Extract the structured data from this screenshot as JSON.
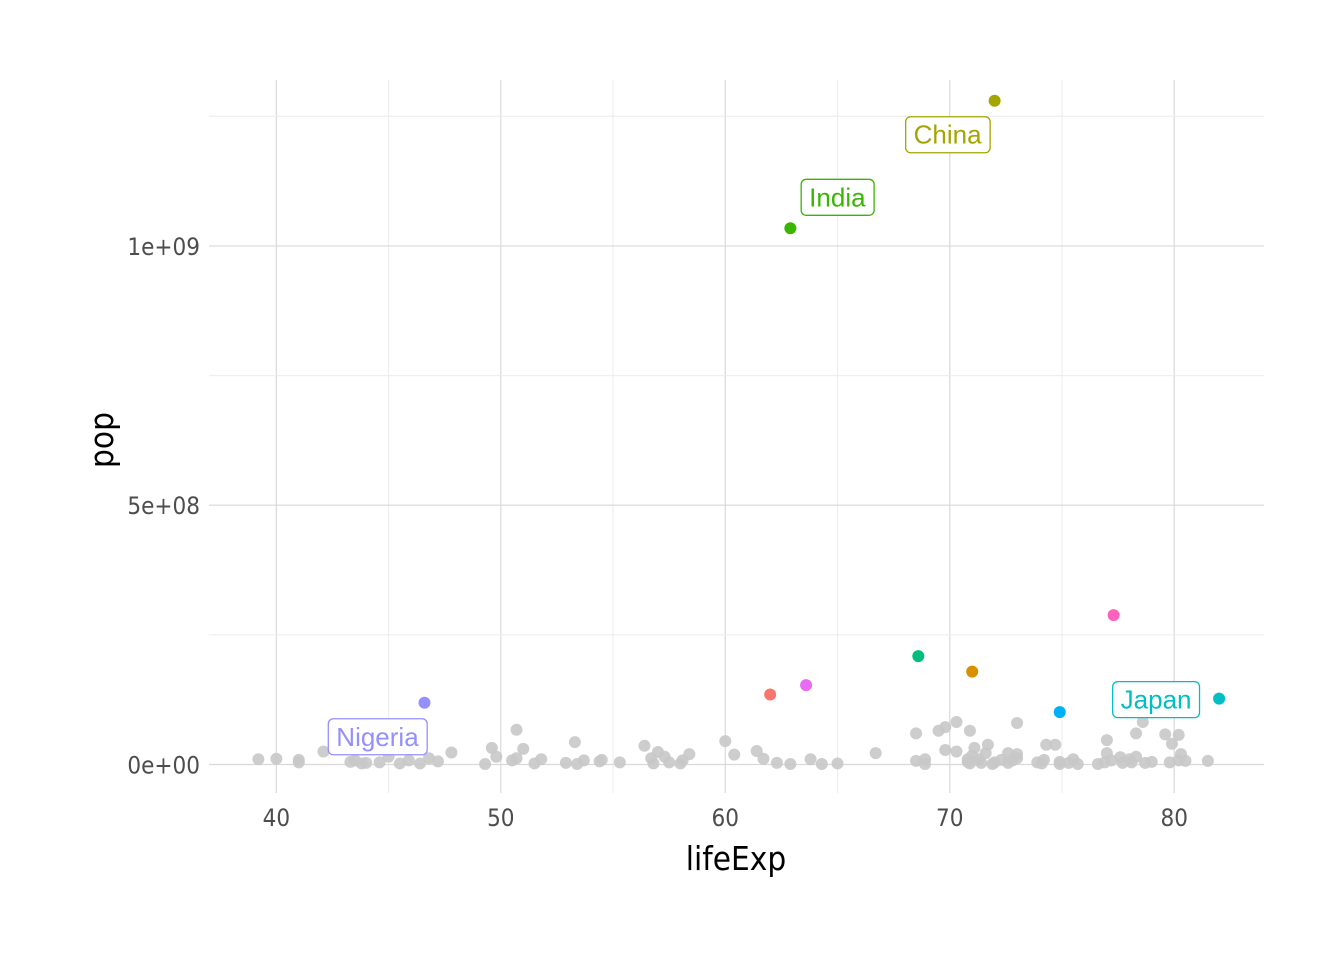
{
  "chart_data": {
    "type": "scatter",
    "xlabel": "lifeExp",
    "ylabel": "pop",
    "xlim": [
      37.0,
      84.0
    ],
    "ylim": [
      -55000000,
      1320000000
    ],
    "x_ticks": [
      40,
      50,
      60,
      70,
      80
    ],
    "x_tick_labels": [
      "40",
      "50",
      "60",
      "70",
      "80"
    ],
    "y_ticks": [
      0,
      500000000,
      1000000000
    ],
    "y_tick_labels": [
      "0e+00",
      "5e+08",
      "1e+09"
    ],
    "grid": true,
    "background_point_color": "#c8c8c8",
    "highlighted": [
      {
        "label": "China",
        "x": 72.0,
        "y": 1280000000,
        "color": "#a3a500",
        "show_label": true
      },
      {
        "label": "India",
        "x": 62.9,
        "y": 1034000000,
        "color": "#39b600",
        "show_label": true
      },
      {
        "label": "Nigeria",
        "x": 46.6,
        "y": 119000000,
        "color": "#9590ff",
        "show_label": true
      },
      {
        "label": "Japan",
        "x": 82.0,
        "y": 127000000,
        "color": "#00bfc4",
        "show_label": true
      },
      {
        "label": "",
        "x": 77.3,
        "y": 288000000,
        "color": "#ff62bc",
        "show_label": false
      },
      {
        "label": "",
        "x": 68.6,
        "y": 209000000,
        "color": "#00bf7d",
        "show_label": false
      },
      {
        "label": "",
        "x": 71.0,
        "y": 179000000,
        "color": "#d89000",
        "show_label": false
      },
      {
        "label": "",
        "x": 63.6,
        "y": 153000000,
        "color": "#e76bf3",
        "show_label": false
      },
      {
        "label": "",
        "x": 62.0,
        "y": 135000000,
        "color": "#f8766d",
        "show_label": false
      },
      {
        "label": "",
        "x": 74.9,
        "y": 101000000,
        "color": "#00b0f6",
        "show_label": false
      }
    ],
    "background_points": [
      [
        39.2,
        10000000
      ],
      [
        40.0,
        11000000
      ],
      [
        41.0,
        9000000
      ],
      [
        41.0,
        4000000
      ],
      [
        42.1,
        25000000
      ],
      [
        43.3,
        5000000
      ],
      [
        43.5,
        8000000
      ],
      [
        43.8,
        2000000
      ],
      [
        44.0,
        3000000
      ],
      [
        44.6,
        4000000
      ],
      [
        45.0,
        15000000
      ],
      [
        45.5,
        2000000
      ],
      [
        45.9,
        8000000
      ],
      [
        46.4,
        2000000
      ],
      [
        46.8,
        12000000
      ],
      [
        47.2,
        6000000
      ],
      [
        47.8,
        23000000
      ],
      [
        49.3,
        1000000
      ],
      [
        49.6,
        32000000
      ],
      [
        49.8,
        15000000
      ],
      [
        50.5,
        8000000
      ],
      [
        50.7,
        12000000
      ],
      [
        50.7,
        67000000
      ],
      [
        51.0,
        30000000
      ],
      [
        51.5,
        2000000
      ],
      [
        51.8,
        10000000
      ],
      [
        52.9,
        3000000
      ],
      [
        53.3,
        43000000
      ],
      [
        53.4,
        1000000
      ],
      [
        53.7,
        8000000
      ],
      [
        54.4,
        6000000
      ],
      [
        54.5,
        9000000
      ],
      [
        55.3,
        4000000
      ],
      [
        56.4,
        36000000
      ],
      [
        56.7,
        12000000
      ],
      [
        56.8,
        2000000
      ],
      [
        57.0,
        24000000
      ],
      [
        57.3,
        15000000
      ],
      [
        57.5,
        4000000
      ],
      [
        58.0,
        2000000
      ],
      [
        58.1,
        8000000
      ],
      [
        58.4,
        20000000
      ],
      [
        60.0,
        45000000
      ],
      [
        60.4,
        19000000
      ],
      [
        61.4,
        26000000
      ],
      [
        61.7,
        11000000
      ],
      [
        62.3,
        3000000
      ],
      [
        62.9,
        1000000
      ],
      [
        63.8,
        10000000
      ],
      [
        64.3,
        1000000
      ],
      [
        65.0,
        2000000
      ],
      [
        66.7,
        22000000
      ],
      [
        68.5,
        7000000
      ],
      [
        68.5,
        60000000
      ],
      [
        68.9,
        1000000
      ],
      [
        68.9,
        10000000
      ],
      [
        69.5,
        65000000
      ],
      [
        69.8,
        28000000
      ],
      [
        69.8,
        72000000
      ],
      [
        70.3,
        82000000
      ],
      [
        70.3,
        25000000
      ],
      [
        70.8,
        10000000
      ],
      [
        70.8,
        5000000
      ],
      [
        70.9,
        65000000
      ],
      [
        70.9,
        2000000
      ],
      [
        71.0,
        17000000
      ],
      [
        71.1,
        32000000
      ],
      [
        71.3,
        10000000
      ],
      [
        71.4,
        3000000
      ],
      [
        71.6,
        22000000
      ],
      [
        71.7,
        38000000
      ],
      [
        71.9,
        1000000
      ],
      [
        72.0,
        4000000
      ],
      [
        72.3,
        9000000
      ],
      [
        72.6,
        22000000
      ],
      [
        72.6,
        3000000
      ],
      [
        72.8,
        8000000
      ],
      [
        73.0,
        80000000
      ],
      [
        73.0,
        20000000
      ],
      [
        73.0,
        12000000
      ],
      [
        73.9,
        4000000
      ],
      [
        74.1,
        2000000
      ],
      [
        74.2,
        9000000
      ],
      [
        74.3,
        38000000
      ],
      [
        74.7,
        38000000
      ],
      [
        74.9,
        1000000
      ],
      [
        74.9,
        5000000
      ],
      [
        75.3,
        3000000
      ],
      [
        75.5,
        10000000
      ],
      [
        75.7,
        1000000
      ],
      [
        76.6,
        1000000
      ],
      [
        76.9,
        4000000
      ],
      [
        77.0,
        22000000
      ],
      [
        77.0,
        47000000
      ],
      [
        77.2,
        8000000
      ],
      [
        77.6,
        14000000
      ],
      [
        77.7,
        3000000
      ],
      [
        78.0,
        10000000
      ],
      [
        78.1,
        4000000
      ],
      [
        78.3,
        60000000
      ],
      [
        78.3,
        15000000
      ],
      [
        78.6,
        82000000
      ],
      [
        78.7,
        3000000
      ],
      [
        79.0,
        5000000
      ],
      [
        79.6,
        58000000
      ],
      [
        79.8,
        4000000
      ],
      [
        79.9,
        40000000
      ],
      [
        80.2,
        8000000
      ],
      [
        80.2,
        57000000
      ],
      [
        80.3,
        20000000
      ],
      [
        80.5,
        7000000
      ],
      [
        81.5,
        7000000
      ]
    ]
  }
}
